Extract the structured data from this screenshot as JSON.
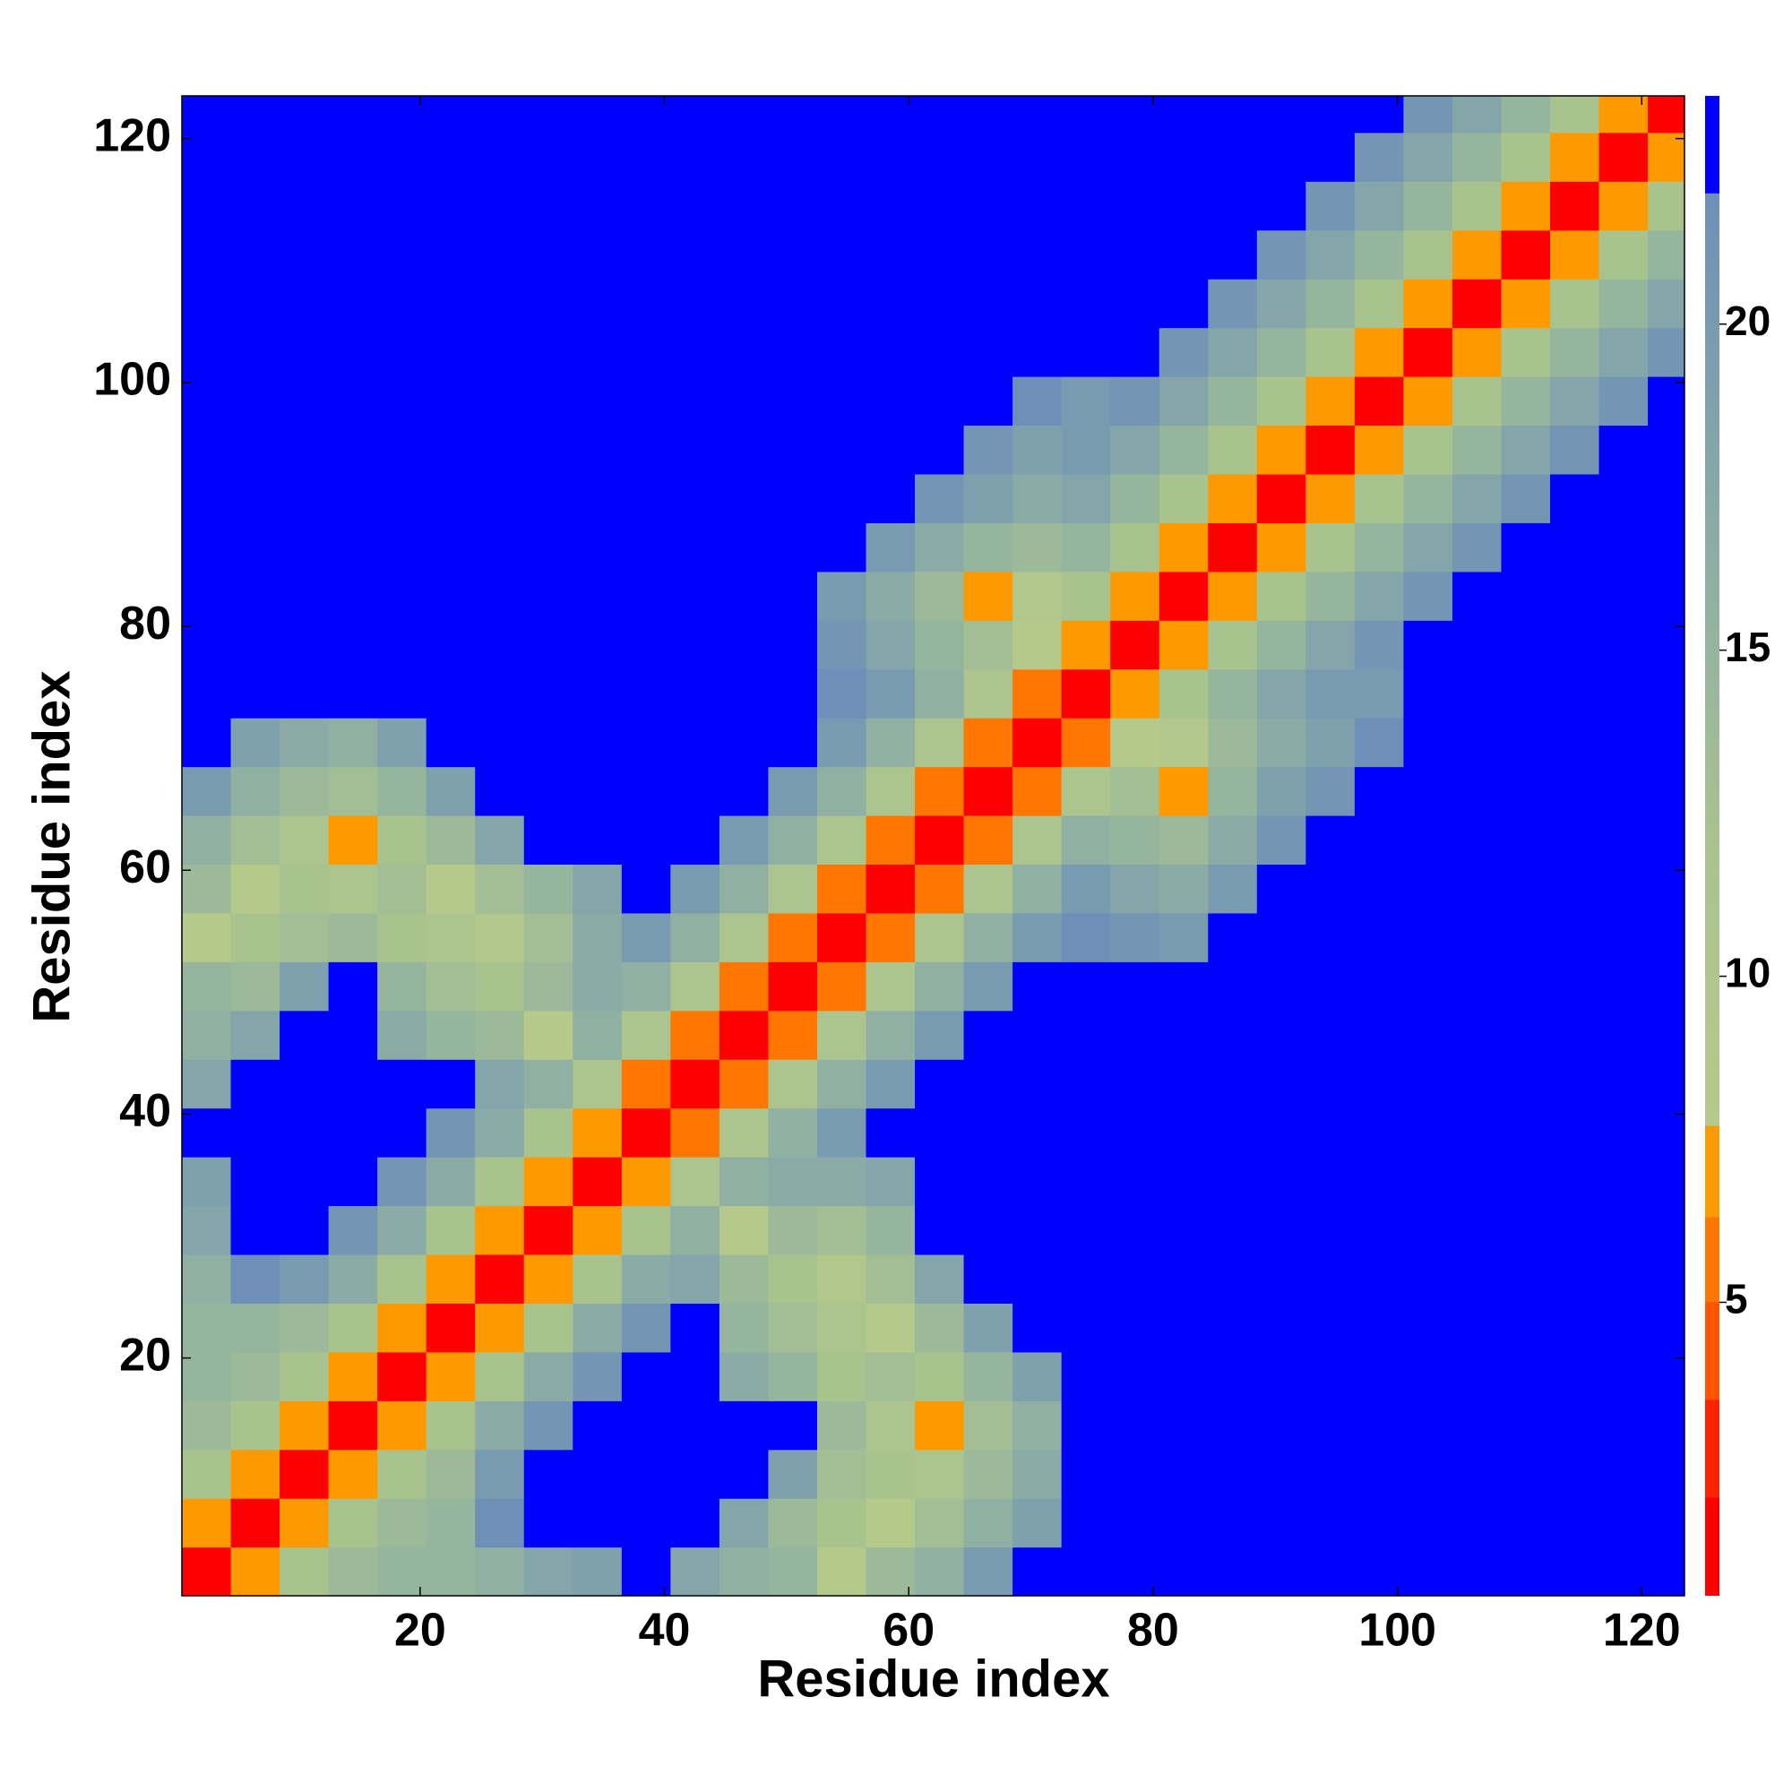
{
  "chart_data": {
    "type": "heatmap",
    "xlabel": "Residue index",
    "ylabel": "Residue index",
    "xlim": [
      0.5,
      123.5
    ],
    "ylim": [
      0.5,
      123.5
    ],
    "xticks": [
      20,
      40,
      60,
      80,
      100,
      120
    ],
    "yticks": [
      20,
      40,
      60,
      80,
      100,
      120
    ],
    "x": [
      2.5,
      6.5,
      10.5,
      14.5,
      18.5,
      22.5,
      26.5,
      30.5,
      34.5,
      38.5,
      42.5,
      46.5,
      50.5,
      54.5,
      58.5,
      62.5,
      66.5,
      70.5,
      74.5,
      78.5,
      82.5,
      86.5,
      90.5,
      94.5,
      98.5,
      102.5,
      106.5,
      110.5,
      114.5,
      118.5,
      122.5
    ],
    "y": [
      2.5,
      6.5,
      10.5,
      14.5,
      18.5,
      22.5,
      26.5,
      30.5,
      34.5,
      38.5,
      42.5,
      46.5,
      50.5,
      54.5,
      58.5,
      62.5,
      66.5,
      70.5,
      74.5,
      78.5,
      82.5,
      86.5,
      90.5,
      94.5,
      98.5,
      102.5,
      106.5,
      110.5,
      114.5,
      118.5,
      122.5
    ],
    "z": [
      [
        2,
        7,
        12,
        14,
        15,
        15,
        16,
        18,
        19,
        23,
        18,
        16,
        15,
        8,
        14,
        16,
        20,
        23,
        23,
        23,
        23,
        23,
        23,
        23,
        23,
        23,
        23,
        23,
        23,
        23,
        23
      ],
      [
        7,
        2,
        7,
        12,
        14,
        15,
        22,
        23,
        23,
        23,
        23,
        18,
        14,
        12,
        8,
        13,
        16,
        19,
        23,
        23,
        23,
        23,
        23,
        23,
        23,
        23,
        23,
        23,
        23,
        23,
        23
      ],
      [
        12,
        7,
        2,
        7,
        12,
        14,
        20,
        23,
        23,
        23,
        23,
        23,
        19,
        13,
        12,
        11,
        14,
        17,
        23,
        23,
        23,
        23,
        23,
        23,
        23,
        23,
        23,
        23,
        23,
        23,
        23
      ],
      [
        14,
        12,
        7,
        2,
        7,
        12,
        17,
        21,
        23,
        23,
        23,
        23,
        23,
        14,
        11,
        7,
        13,
        16,
        23,
        23,
        23,
        23,
        23,
        23,
        23,
        23,
        23,
        23,
        23,
        23,
        23
      ],
      [
        15,
        14,
        12,
        7,
        2,
        7,
        12,
        17,
        21,
        23,
        23,
        17,
        15,
        12,
        13,
        12,
        15,
        19,
        23,
        23,
        23,
        23,
        23,
        23,
        23,
        23,
        23,
        23,
        23,
        23,
        23
      ],
      [
        15,
        15,
        14,
        12,
        7,
        2,
        7,
        12,
        17,
        21,
        23,
        15,
        13,
        11,
        8,
        14,
        19,
        23,
        23,
        23,
        23,
        23,
        23,
        23,
        23,
        23,
        23,
        23,
        23,
        23,
        23
      ],
      [
        16,
        22,
        20,
        17,
        12,
        7,
        2,
        7,
        12,
        17,
        18,
        14,
        12,
        9,
        13,
        18,
        23,
        23,
        23,
        23,
        23,
        23,
        23,
        23,
        23,
        23,
        23,
        23,
        23,
        23,
        23
      ],
      [
        18,
        23,
        23,
        21,
        17,
        12,
        7,
        2,
        7,
        12,
        16,
        8,
        14,
        13,
        15,
        23,
        23,
        23,
        23,
        23,
        23,
        23,
        23,
        23,
        23,
        23,
        23,
        23,
        23,
        23,
        23
      ],
      [
        19,
        23,
        23,
        23,
        21,
        17,
        12,
        7,
        2,
        7,
        11,
        16,
        17,
        17,
        18,
        23,
        23,
        23,
        23,
        23,
        23,
        23,
        23,
        23,
        23,
        23,
        23,
        23,
        23,
        23,
        23
      ],
      [
        23,
        23,
        23,
        23,
        23,
        21,
        17,
        12,
        7,
        2,
        6,
        11,
        16,
        20,
        23,
        23,
        23,
        23,
        23,
        23,
        23,
        23,
        23,
        23,
        23,
        23,
        23,
        23,
        23,
        23,
        23
      ],
      [
        18,
        23,
        23,
        23,
        23,
        23,
        18,
        16,
        11,
        6,
        2,
        6,
        11,
        16,
        20,
        23,
        23,
        23,
        23,
        23,
        23,
        23,
        23,
        23,
        23,
        23,
        23,
        23,
        23,
        23,
        23
      ],
      [
        16,
        18,
        23,
        23,
        17,
        15,
        14,
        8,
        16,
        11,
        6,
        2,
        6,
        11,
        16,
        20,
        23,
        23,
        23,
        23,
        23,
        23,
        23,
        23,
        23,
        23,
        23,
        23,
        23,
        23,
        23
      ],
      [
        15,
        14,
        19,
        23,
        15,
        13,
        12,
        14,
        17,
        16,
        11,
        6,
        2,
        6,
        11,
        16,
        20,
        23,
        23,
        23,
        23,
        23,
        23,
        23,
        23,
        23,
        23,
        23,
        23,
        23,
        23
      ],
      [
        8,
        12,
        13,
        14,
        12,
        11,
        9,
        13,
        17,
        20,
        16,
        11,
        6,
        2,
        6,
        11,
        16,
        20,
        22,
        21,
        20,
        23,
        23,
        23,
        23,
        23,
        23,
        23,
        23,
        23,
        23
      ],
      [
        14,
        8,
        12,
        11,
        13,
        8,
        13,
        15,
        18,
        23,
        20,
        16,
        11,
        6,
        2,
        6,
        11,
        16,
        20,
        18,
        17,
        20,
        23,
        23,
        23,
        23,
        23,
        23,
        23,
        23,
        23
      ],
      [
        16,
        13,
        11,
        7,
        12,
        14,
        18,
        23,
        23,
        23,
        23,
        20,
        16,
        11,
        6,
        2,
        6,
        11,
        16,
        15,
        14,
        17,
        21,
        23,
        23,
        23,
        23,
        23,
        23,
        23,
        23
      ],
      [
        20,
        16,
        14,
        13,
        15,
        19,
        23,
        23,
        23,
        23,
        23,
        23,
        20,
        16,
        11,
        6,
        2,
        6,
        11,
        13,
        7,
        15,
        19,
        21,
        23,
        23,
        23,
        23,
        23,
        23,
        23
      ],
      [
        23,
        19,
        17,
        16,
        19,
        23,
        23,
        23,
        23,
        23,
        23,
        23,
        23,
        20,
        16,
        11,
        6,
        2,
        6,
        8,
        9,
        14,
        17,
        19,
        22,
        23,
        23,
        23,
        23,
        23,
        23
      ],
      [
        23,
        23,
        23,
        23,
        23,
        23,
        23,
        23,
        23,
        23,
        23,
        23,
        23,
        22,
        20,
        16,
        11,
        6,
        2,
        7,
        12,
        15,
        18,
        20,
        20,
        23,
        23,
        23,
        23,
        23,
        23
      ],
      [
        23,
        23,
        23,
        23,
        23,
        23,
        23,
        23,
        23,
        23,
        23,
        23,
        23,
        21,
        18,
        15,
        13,
        8,
        7,
        2,
        7,
        12,
        15,
        18,
        21,
        23,
        23,
        23,
        23,
        23,
        23
      ],
      [
        23,
        23,
        23,
        23,
        23,
        23,
        23,
        23,
        23,
        23,
        23,
        23,
        23,
        20,
        17,
        14,
        7,
        9,
        12,
        7,
        2,
        7,
        12,
        15,
        18,
        21,
        23,
        23,
        23,
        23,
        23
      ],
      [
        23,
        23,
        23,
        23,
        23,
        23,
        23,
        23,
        23,
        23,
        23,
        23,
        23,
        23,
        20,
        17,
        15,
        14,
        15,
        12,
        7,
        2,
        7,
        12,
        15,
        18,
        21,
        23,
        23,
        23,
        23
      ],
      [
        23,
        23,
        23,
        23,
        23,
        23,
        23,
        23,
        23,
        23,
        23,
        23,
        23,
        23,
        23,
        21,
        19,
        17,
        18,
        15,
        12,
        7,
        2,
        7,
        12,
        15,
        18,
        21,
        23,
        23,
        23
      ],
      [
        23,
        23,
        23,
        23,
        23,
        23,
        23,
        23,
        23,
        23,
        23,
        23,
        23,
        23,
        23,
        23,
        21,
        19,
        20,
        18,
        15,
        12,
        7,
        2,
        7,
        12,
        15,
        18,
        21,
        23,
        23
      ],
      [
        23,
        23,
        23,
        23,
        23,
        23,
        23,
        23,
        23,
        23,
        23,
        23,
        23,
        23,
        23,
        23,
        23,
        22,
        20,
        21,
        18,
        15,
        12,
        7,
        2,
        7,
        12,
        15,
        18,
        21,
        23
      ],
      [
        23,
        23,
        23,
        23,
        23,
        23,
        23,
        23,
        23,
        23,
        23,
        23,
        23,
        23,
        23,
        23,
        23,
        23,
        23,
        23,
        21,
        18,
        15,
        12,
        7,
        2,
        7,
        12,
        15,
        18,
        21
      ],
      [
        23,
        23,
        23,
        23,
        23,
        23,
        23,
        23,
        23,
        23,
        23,
        23,
        23,
        23,
        23,
        23,
        23,
        23,
        23,
        23,
        23,
        21,
        18,
        15,
        12,
        7,
        2,
        7,
        12,
        15,
        18
      ],
      [
        23,
        23,
        23,
        23,
        23,
        23,
        23,
        23,
        23,
        23,
        23,
        23,
        23,
        23,
        23,
        23,
        23,
        23,
        23,
        23,
        23,
        23,
        21,
        18,
        15,
        12,
        7,
        2,
        7,
        12,
        15
      ],
      [
        23,
        23,
        23,
        23,
        23,
        23,
        23,
        23,
        23,
        23,
        23,
        23,
        23,
        23,
        23,
        23,
        23,
        23,
        23,
        23,
        23,
        23,
        23,
        21,
        18,
        15,
        12,
        7,
        2,
        7,
        12
      ],
      [
        23,
        23,
        23,
        23,
        23,
        23,
        23,
        23,
        23,
        23,
        23,
        23,
        23,
        23,
        23,
        23,
        23,
        23,
        23,
        23,
        23,
        23,
        23,
        23,
        21,
        18,
        15,
        12,
        7,
        2,
        7
      ],
      [
        23,
        23,
        23,
        23,
        23,
        23,
        23,
        23,
        23,
        23,
        23,
        23,
        23,
        23,
        23,
        23,
        23,
        23,
        23,
        23,
        23,
        23,
        23,
        23,
        23,
        21,
        18,
        15,
        12,
        7,
        2
      ]
    ],
    "colorbar": {
      "lim": [
        0.5,
        23.5
      ],
      "ticks": [
        5,
        10,
        15,
        20
      ]
    },
    "colorscale": [
      [
        0.5,
        "#ff0000"
      ],
      [
        2,
        "#ff0000"
      ],
      [
        2.01,
        "#ff2200"
      ],
      [
        3.5,
        "#ff2200"
      ],
      [
        3.51,
        "#ff5500"
      ],
      [
        5,
        "#ff5500"
      ],
      [
        5.01,
        "#ff7700"
      ],
      [
        6.3,
        "#ff7700"
      ],
      [
        6.31,
        "#ff9900"
      ],
      [
        7.7,
        "#ff9900"
      ],
      [
        7.71,
        "#b5c98a"
      ],
      [
        12,
        "#a9c38f"
      ],
      [
        16,
        "#8fb0a2"
      ],
      [
        22,
        "#6e90b8"
      ],
      [
        22.01,
        "#0000ff"
      ],
      [
        23.5,
        "#0000ff"
      ]
    ]
  }
}
